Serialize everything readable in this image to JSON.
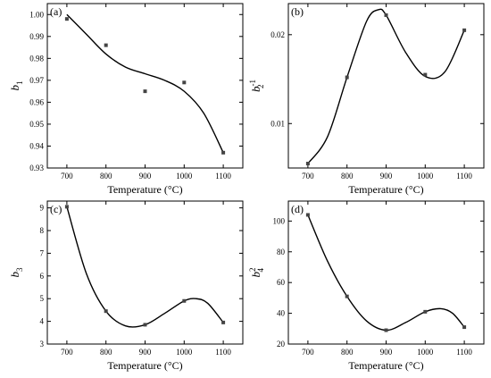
{
  "chart_data": [
    {
      "type": "scatter",
      "panel_label": "(a)",
      "xlabel": "Temperature (°C)",
      "ylabel": {
        "base": "b",
        "sub": "1",
        "sup": ""
      },
      "xlim": [
        650,
        1150
      ],
      "ylim": [
        0.93,
        1.005
      ],
      "xticks": [
        700,
        800,
        900,
        1000,
        1100
      ],
      "yticks": [
        0.93,
        0.94,
        0.95,
        0.96,
        0.97,
        0.98,
        0.99,
        1.0
      ],
      "ytick_labels": [
        "0.93",
        "0.94",
        "0.95",
        "0.96",
        "0.97",
        "0.98",
        "0.99",
        "1.00"
      ],
      "points": {
        "x": [
          700,
          800,
          900,
          1000,
          1100
        ],
        "y": [
          0.998,
          0.986,
          0.965,
          0.969,
          0.937
        ]
      },
      "curve": {
        "x": [
          700,
          750,
          800,
          850,
          900,
          950,
          1000,
          1050,
          1100
        ],
        "y": [
          1.0,
          0.991,
          0.982,
          0.976,
          0.973,
          0.97,
          0.965,
          0.955,
          0.937
        ]
      }
    },
    {
      "type": "scatter",
      "panel_label": "(b)",
      "xlabel": "Temperature (°C)",
      "ylabel": {
        "base": "b",
        "sub": "2",
        "sup": "-1"
      },
      "xlim": [
        650,
        1150
      ],
      "ylim": [
        0.005,
        0.0235
      ],
      "xticks": [
        700,
        800,
        900,
        1000,
        1100
      ],
      "yticks": [
        0.01,
        0.02
      ],
      "ytick_labels": [
        "0.01",
        "0.02"
      ],
      "points": {
        "x": [
          700,
          800,
          900,
          1000,
          1100
        ],
        "y": [
          0.0055,
          0.0152,
          0.0222,
          0.0155,
          0.0205
        ]
      },
      "curve": {
        "x": [
          700,
          750,
          800,
          850,
          880,
          900,
          950,
          1000,
          1050,
          1100
        ],
        "y": [
          0.0055,
          0.0085,
          0.0152,
          0.0215,
          0.0228,
          0.0222,
          0.018,
          0.0153,
          0.0158,
          0.0205
        ]
      }
    },
    {
      "type": "scatter",
      "panel_label": "(c)",
      "xlabel": "Temperature (°C)",
      "ylabel": {
        "base": "b",
        "sub": "3",
        "sup": ""
      },
      "xlim": [
        650,
        1150
      ],
      "ylim": [
        3,
        9.3
      ],
      "xticks": [
        700,
        800,
        900,
        1000,
        1100
      ],
      "yticks": [
        3,
        4,
        5,
        6,
        7,
        8,
        9
      ],
      "ytick_labels": [
        "3",
        "4",
        "5",
        "6",
        "7",
        "8",
        "9"
      ],
      "points": {
        "x": [
          700,
          800,
          900,
          1000,
          1100
        ],
        "y": [
          9.05,
          4.45,
          3.85,
          4.9,
          3.95
        ]
      },
      "curve": {
        "x": [
          700,
          750,
          800,
          850,
          900,
          950,
          1000,
          1030,
          1060,
          1100
        ],
        "y": [
          9.05,
          6.1,
          4.45,
          3.8,
          3.85,
          4.35,
          4.9,
          5.0,
          4.8,
          3.95
        ]
      }
    },
    {
      "type": "scatter",
      "panel_label": "(d)",
      "xlabel": "Temperature (°C)",
      "ylabel": {
        "base": "b",
        "sub": "4",
        "sup": "2"
      },
      "xlim": [
        650,
        1150
      ],
      "ylim": [
        20,
        113
      ],
      "xticks": [
        700,
        800,
        900,
        1000,
        1100
      ],
      "yticks": [
        20,
        40,
        60,
        80,
        100
      ],
      "ytick_labels": [
        "20",
        "40",
        "60",
        "80",
        "100"
      ],
      "points": {
        "x": [
          700,
          800,
          900,
          1000,
          1100
        ],
        "y": [
          104,
          51,
          29,
          41,
          31
        ]
      },
      "curve": {
        "x": [
          700,
          750,
          800,
          850,
          900,
          950,
          1000,
          1040,
          1070,
          1100
        ],
        "y": [
          104,
          74,
          51,
          35,
          29,
          34,
          41,
          43,
          40,
          31
        ]
      }
    }
  ]
}
